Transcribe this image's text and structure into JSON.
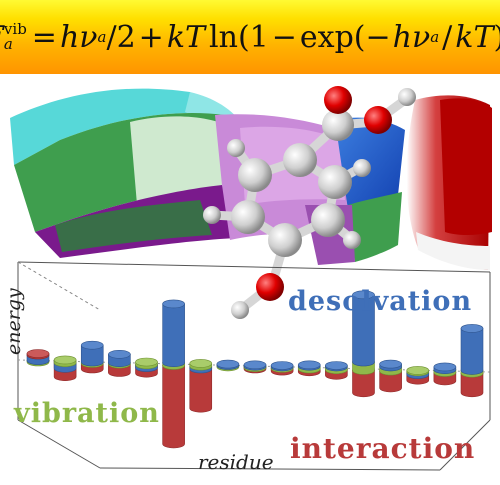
{
  "equation": {
    "F": "F",
    "a": "a",
    "vib": "vib",
    "eq": "=",
    "h": "h",
    "nu": "ν",
    "over2": "/2",
    "plus": "+",
    "kT": "kT",
    "ln": "ln",
    "lp1": "(",
    "one": "1",
    "minus": "−",
    "exp": "exp",
    "lp2": "(",
    "neg": "−",
    "slash": "/",
    "rp": "))"
  },
  "labels": {
    "energy": "energy",
    "residue": "residue",
    "desolvation": "desolvation",
    "vibration": "vibration",
    "interaction": "interaction"
  },
  "colors": {
    "desolvation": "#3f6fb8",
    "vibration": "#8fb84a",
    "interaction": "#b83a3a"
  },
  "chart_data": {
    "type": "bar",
    "series": [
      {
        "name": "desolvation",
        "values": [
          0.2,
          -0.2,
          0.6,
          0.3,
          -0.1,
          2.1,
          -0.1,
          0.05,
          0.05,
          0.05,
          0.05,
          0.05,
          2.4,
          0.1,
          -0.1,
          0.1,
          1.5
        ]
      },
      {
        "name": "vibration",
        "values": [
          0.05,
          0.1,
          0.05,
          0.05,
          0.1,
          0.1,
          0.1,
          0.05,
          0.05,
          0.05,
          0.1,
          0.1,
          0.3,
          0.15,
          0.05,
          0.1,
          0.1
        ]
      },
      {
        "name": "interaction",
        "values": [
          0.05,
          -0.5,
          -0.2,
          -0.3,
          -0.3,
          -2.8,
          -1.5,
          0.0,
          -0.05,
          -0.1,
          -0.1,
          -0.2,
          -0.8,
          -0.6,
          -0.3,
          -0.3,
          -0.7
        ]
      }
    ],
    "xlabel": "residue",
    "ylabel": "energy"
  }
}
